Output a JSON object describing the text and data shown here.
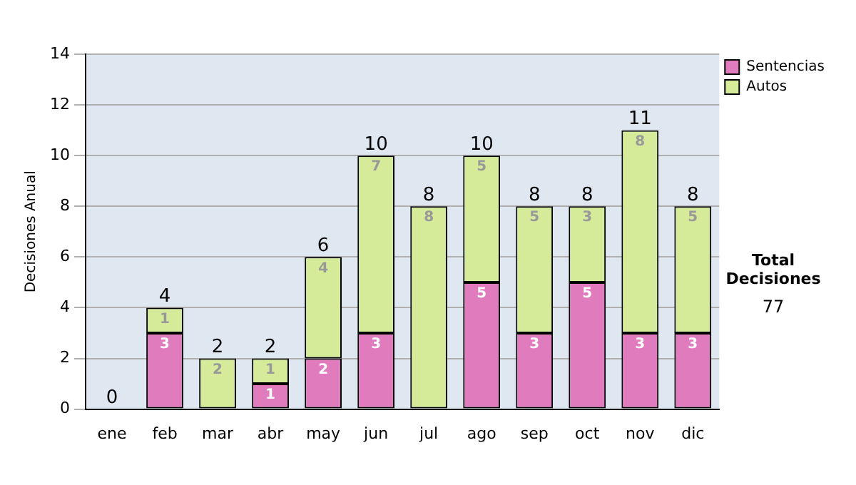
{
  "chart_data": {
    "type": "bar",
    "stacked": true,
    "ylabel": "Decisiones Anual",
    "categories": [
      "ene",
      "feb",
      "mar",
      "abr",
      "may",
      "jun",
      "jul",
      "ago",
      "sep",
      "oct",
      "nov",
      "dic"
    ],
    "series": [
      {
        "name": "Sentencias",
        "color": "#e07bbd",
        "values": [
          0,
          3,
          0,
          1,
          2,
          3,
          0,
          5,
          3,
          5,
          3,
          3
        ],
        "value_labels": [
          null,
          "3",
          null,
          "1",
          "2",
          "3",
          null,
          "5",
          "3",
          "5",
          "3",
          "3"
        ]
      },
      {
        "name": "Autos",
        "color": "#d6eb99",
        "values": [
          0,
          1,
          2,
          1,
          4,
          7,
          8,
          5,
          5,
          3,
          8,
          5
        ],
        "value_labels": [
          null,
          "1",
          "2",
          "1",
          "4",
          "7",
          "8",
          "5",
          "5",
          "3",
          "8",
          "5"
        ]
      }
    ],
    "totals": [
      "0",
      "4",
      "2",
      "2",
      "6",
      "10",
      "8",
      "10",
      "8",
      "8",
      "11",
      "8"
    ],
    "ylim": [
      0,
      14
    ],
    "yticks": [
      0,
      2,
      4,
      6,
      8,
      10,
      12,
      14
    ],
    "grid": "y",
    "legend": "right",
    "annotations": [
      "Total Decisiones",
      "77"
    ]
  }
}
